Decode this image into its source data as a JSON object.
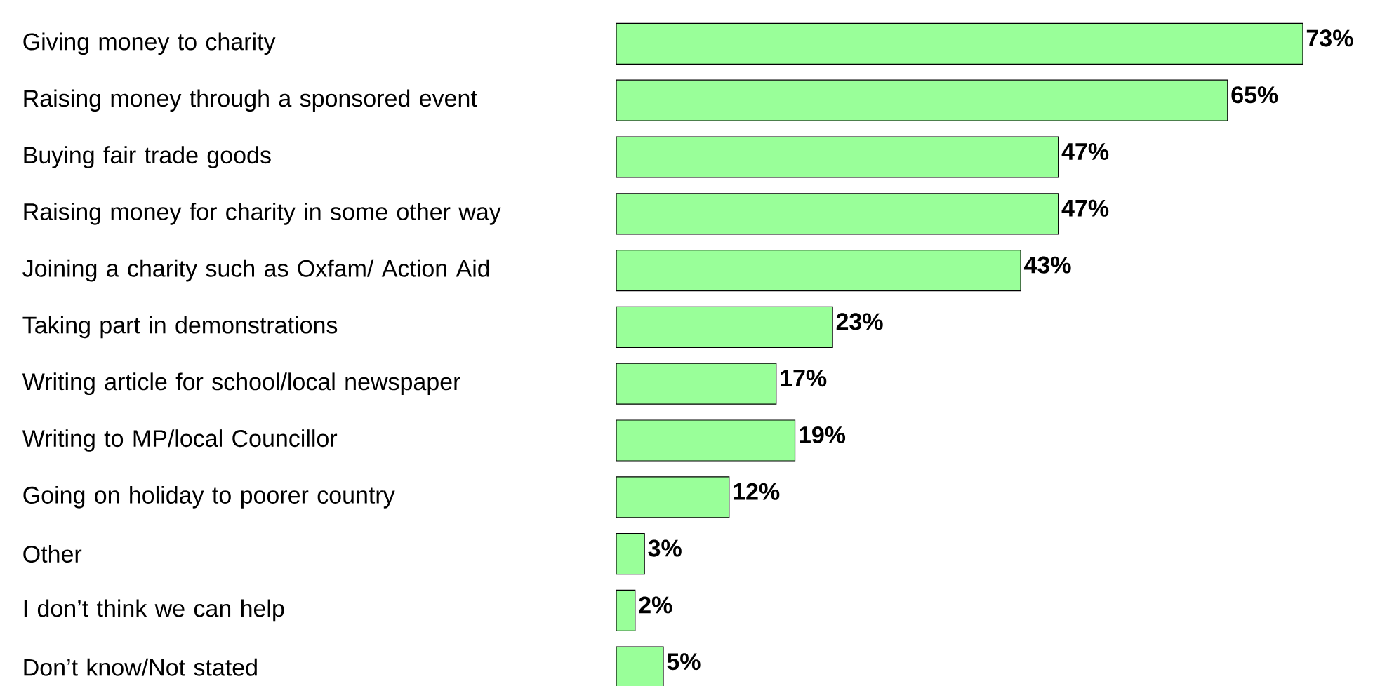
{
  "chart_data": {
    "type": "bar",
    "orientation": "horizontal",
    "color": "#99ff99",
    "categories": [
      "Giving money to charity",
      "Raising money through a sponsored event",
      "Buying fair trade goods",
      "Raising money for charity in some other way",
      "Joining a charity such as Oxfam/ Action Aid",
      "Taking part in demonstrations",
      "Writing article for school/local newspaper",
      "Writing to MP/local Councillor",
      "Going on holiday to poorer country",
      "Other",
      "I don’t think we can help",
      "Don’t know/Not stated"
    ],
    "values": [
      73,
      65,
      47,
      47,
      43,
      23,
      17,
      19,
      12,
      3,
      2,
      5
    ],
    "value_labels": [
      "73%",
      "65%",
      "47%",
      "47%",
      "43%",
      "23%",
      "17%",
      "19%",
      "12%",
      "3%",
      "2%",
      "5%"
    ]
  }
}
